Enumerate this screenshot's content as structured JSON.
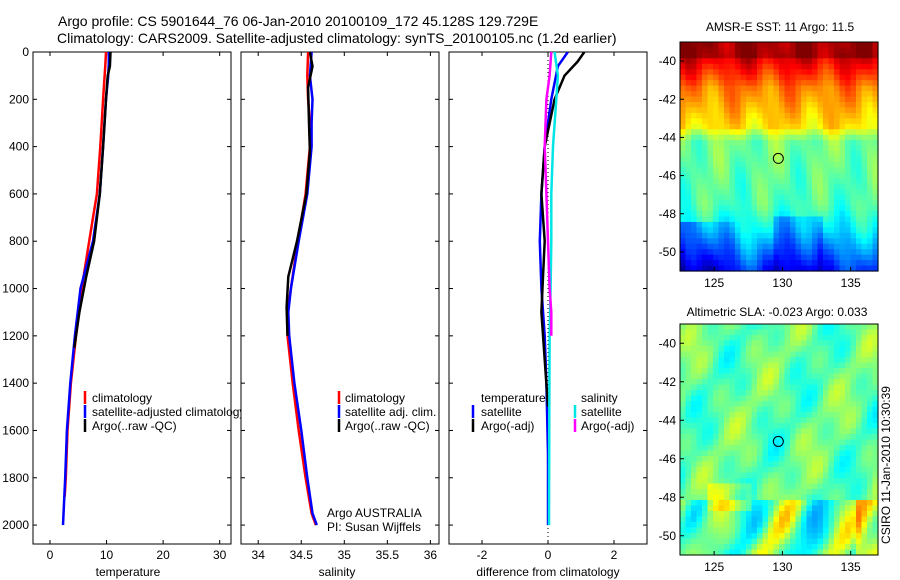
{
  "header": {
    "line1": "Argo profile: CS 5901644_76 06-Jan-2010 20100109_172 45.128S 129.729E",
    "line2": "Climatology: CARS2009. Satellite-adjusted climatology: synTS_20100105.nc (1.2d earlier)"
  },
  "side_label": "CSIRO 11-Jan-2010 10:30:39",
  "colors": {
    "red": "#ff0000",
    "blue": "#0000ff",
    "black": "#000000",
    "cyan": "#00e5e5",
    "magenta": "#ff00ff"
  },
  "chart_data": [
    {
      "type": "line",
      "id": "temperature",
      "xlabel": "temperature",
      "ylabel": "",
      "xlim": [
        -3,
        32
      ],
      "ylim": [
        2080,
        0
      ],
      "xticks": [
        0,
        10,
        20,
        30
      ],
      "xtick_labels": [
        "0",
        "10",
        "20",
        "30"
      ],
      "yticks": [
        0,
        200,
        400,
        600,
        800,
        1000,
        1200,
        1400,
        1600,
        1800,
        2000
      ],
      "ytick_labels": [
        "0",
        "200",
        "400",
        "600",
        "800",
        "1000",
        "1200",
        "1400",
        "1600",
        "1800",
        "2000"
      ],
      "series": [
        {
          "name": "climatology",
          "color": "#ff0000",
          "x": [
            9.9,
            9.8,
            9.4,
            8.9,
            8.3,
            7.6,
            6.6,
            5.6,
            4.6,
            3.7,
            3.1,
            2.8,
            2.6
          ],
          "y": [
            0,
            50,
            200,
            400,
            600,
            700,
            850,
            1000,
            1200,
            1400,
            1600,
            1800,
            1880
          ]
        },
        {
          "name": "satellite-adjusted climatology",
          "color": "#0000ff",
          "x": [
            10.4,
            10.4,
            10.3,
            9.9,
            9.4,
            8.8,
            8.2,
            7.6,
            6.5,
            5.4,
            4.4,
            3.6,
            3.0,
            2.7,
            2.5,
            2.3
          ],
          "y": [
            0,
            50,
            100,
            200,
            400,
            600,
            700,
            800,
            900,
            1000,
            1200,
            1400,
            1600,
            1800,
            1900,
            2000
          ]
        },
        {
          "name": "Argo(..raw -QC)",
          "color": "#000000",
          "x": [
            10.7,
            10.6,
            10.2,
            9.9,
            9.4,
            8.8,
            7.8,
            6.4,
            5.2,
            4.3
          ],
          "y": [
            0,
            60,
            100,
            200,
            400,
            600,
            800,
            950,
            1100,
            1250
          ]
        }
      ],
      "legend": {
        "placement": "bottom-right",
        "entries": [
          "climatology",
          "satellite-adjusted climatology",
          "Argo(..raw -QC)"
        ],
        "colors": [
          "#ff0000",
          "#0000ff",
          "#000000"
        ]
      }
    },
    {
      "type": "line",
      "id": "salinity",
      "xlabel": "salinity",
      "xlim": [
        33.8,
        36.1
      ],
      "ylim": [
        2080,
        0
      ],
      "xticks": [
        34,
        34.5,
        35,
        35.5,
        36
      ],
      "xtick_labels": [
        "34",
        "34.5",
        "35",
        "35.5",
        "36"
      ],
      "series": [
        {
          "name": "climatology",
          "color": "#ff0000",
          "x": [
            34.58,
            34.57,
            34.58,
            34.6,
            34.6,
            34.55,
            34.46,
            34.38,
            34.34,
            34.34,
            34.4,
            34.47,
            34.55,
            34.62,
            34.67
          ],
          "y": [
            0,
            100,
            200,
            300,
            400,
            600,
            800,
            1000,
            1100,
            1200,
            1400,
            1600,
            1800,
            1950,
            2000
          ]
        },
        {
          "name": "satellite adj. clim.",
          "color": "#0000ff",
          "x": [
            34.62,
            34.6,
            34.63,
            34.62,
            34.62,
            34.57,
            34.47,
            34.38,
            34.35,
            34.36,
            34.42,
            34.5,
            34.57,
            34.63,
            34.68
          ],
          "y": [
            0,
            100,
            200,
            300,
            400,
            600,
            800,
            1000,
            1100,
            1200,
            1400,
            1600,
            1800,
            1950,
            2000
          ]
        },
        {
          "name": "Argo(..raw -QC)",
          "color": "#000000",
          "x": [
            34.6,
            34.63,
            34.58,
            34.59,
            34.6,
            34.56,
            34.45,
            34.35,
            34.33,
            34.34
          ],
          "y": [
            0,
            60,
            150,
            300,
            420,
            600,
            800,
            950,
            1080,
            1200
          ]
        }
      ],
      "legend": {
        "placement": "bottom-right",
        "entries": [
          "climatology",
          "satellite adj. clim.",
          "Argo(..raw -QC)"
        ],
        "colors": [
          "#ff0000",
          "#0000ff",
          "#000000"
        ]
      },
      "annotation": [
        "Argo AUSTRALIA",
        "PI: Susan Wijffels"
      ]
    },
    {
      "type": "line",
      "id": "difference",
      "xlabel": "difference from climatology",
      "xlim": [
        -3,
        3
      ],
      "ylim": [
        2080,
        0
      ],
      "xticks": [
        -2,
        0,
        2
      ],
      "xtick_labels": [
        "-2",
        "0",
        "2"
      ],
      "series": [
        {
          "name": "temperature satellite",
          "color": "#0000ff",
          "x": [
            0.6,
            0.3,
            0.1,
            -0.1,
            -0.2,
            -0.25,
            -0.2,
            -0.1,
            -0.05,
            0,
            0
          ],
          "y": [
            0,
            60,
            200,
            400,
            600,
            800,
            1000,
            1200,
            1400,
            1700,
            2000
          ]
        },
        {
          "name": "temperature Argo(-adj)",
          "color": "#000000",
          "x": [
            1.1,
            0.9,
            0.5,
            0.2,
            -0.1,
            -0.2,
            -0.1,
            -0.15,
            -0.2,
            -0.1,
            0
          ],
          "y": [
            0,
            40,
            100,
            200,
            400,
            600,
            800,
            950,
            1100,
            1300,
            1500
          ]
        },
        {
          "name": "salinity satellite",
          "color": "#00e5e5",
          "x": [
            0.2,
            0.3,
            0.25,
            0.15,
            0.1,
            0.1,
            0.08,
            0.05,
            0.04,
            0.03
          ],
          "y": [
            0,
            100,
            200,
            400,
            600,
            800,
            1000,
            1200,
            1500,
            2000
          ]
        },
        {
          "name": "salinity Argo(-adj)",
          "color": "#ff00ff",
          "x": [
            0.1,
            0.05,
            -0.05,
            -0.1,
            -0.05,
            0,
            0.05,
            0.1,
            0.1
          ],
          "y": [
            0,
            100,
            200,
            400,
            600,
            800,
            1000,
            1100,
            1200
          ]
        }
      ],
      "legend": {
        "placement": "bottom",
        "groups": [
          {
            "title": "temperature",
            "entries": [
              "satellite",
              "Argo(-adj)"
            ],
            "colors": [
              "#0000ff",
              "#000000"
            ]
          },
          {
            "title": "salinity",
            "entries": [
              "satellite",
              "Argo(-adj)"
            ],
            "colors": [
              "#00e5e5",
              "#ff00ff"
            ]
          }
        ]
      }
    },
    {
      "type": "heatmap",
      "id": "sst",
      "title": "AMSR-E SST: 11 Argo: 11.5",
      "xlim": [
        122.5,
        137
      ],
      "ylim": [
        -51,
        -39
      ],
      "xticks": [
        125,
        130,
        135
      ],
      "xtick_labels": [
        "125",
        "130",
        "135"
      ],
      "yticks": [
        -40,
        -42,
        -44,
        -46,
        -48,
        -50
      ],
      "ytick_labels": [
        "-40",
        "-42",
        "-44",
        "-46",
        "-48",
        "-50"
      ],
      "colormap": "jet",
      "marker": {
        "lon": 129.7,
        "lat": -45.1
      }
    },
    {
      "type": "heatmap",
      "id": "sla",
      "title": "Altimetric SLA: -0.023 Argo: 0.033",
      "xlim": [
        122.5,
        137
      ],
      "ylim": [
        -51,
        -39
      ],
      "xticks": [
        125,
        130,
        135
      ],
      "xtick_labels": [
        "125",
        "130",
        "135"
      ],
      "yticks": [
        -40,
        -42,
        -44,
        -46,
        -48,
        -50
      ],
      "ytick_labels": [
        "-40",
        "-42",
        "-44",
        "-46",
        "-48",
        "-50"
      ],
      "colormap": "jet",
      "marker": {
        "lon": 129.7,
        "lat": -45.1
      }
    }
  ]
}
